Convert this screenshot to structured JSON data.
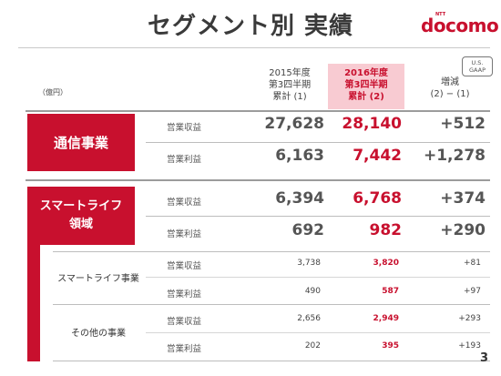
{
  "title": "セグメント別 実績",
  "brand": {
    "sup": "NTT",
    "name": "docomo"
  },
  "gaap_badge": {
    "line1": "U.S.",
    "line2": "GAAP"
  },
  "unit": "（億円）",
  "columns": {
    "prev": {
      "line1": "2015年度",
      "line2": "第3四半期",
      "line3": "累計 (1)"
    },
    "curr": {
      "line1": "2016年度",
      "line2": "第3四半期",
      "line3": "累計 (2)"
    },
    "diff": {
      "line1": "増減",
      "line2": "(2) − (1)"
    }
  },
  "colors": {
    "accent": "#c8102e",
    "highlight": "#f8cbd2"
  },
  "segments": {
    "telecom": {
      "label": "通信事業",
      "rows": [
        {
          "metric": "営業収益",
          "prev": "27,628",
          "curr": "28,140",
          "diff": "+512"
        },
        {
          "metric": "営業利益",
          "prev": "6,163",
          "curr": "7,442",
          "diff": "+1,278"
        }
      ]
    },
    "smartlife": {
      "label_line1": "スマートライフ",
      "label_line2": "領域",
      "rows": [
        {
          "metric": "営業収益",
          "prev": "6,394",
          "curr": "6,768",
          "diff": "+374"
        },
        {
          "metric": "営業利益",
          "prev": "692",
          "curr": "982",
          "diff": "+290"
        }
      ],
      "subsegments": [
        {
          "label": "スマートライフ事業",
          "rows": [
            {
              "metric": "営業収益",
              "prev": "3,738",
              "curr": "3,820",
              "diff": "+81"
            },
            {
              "metric": "営業利益",
              "prev": "490",
              "curr": "587",
              "diff": "+97"
            }
          ]
        },
        {
          "label": "その他の事業",
          "rows": [
            {
              "metric": "営業収益",
              "prev": "2,656",
              "curr": "2,949",
              "diff": "+293"
            },
            {
              "metric": "営業利益",
              "prev": "202",
              "curr": "395",
              "diff": "+193"
            }
          ]
        }
      ]
    }
  },
  "page_number": "3"
}
